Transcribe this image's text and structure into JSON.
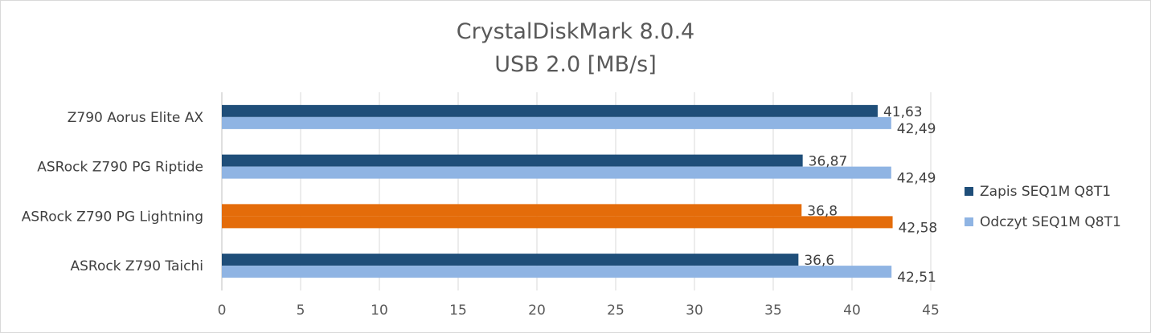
{
  "chart_data": {
    "type": "bar",
    "orientation": "horizontal",
    "title": "CrystalDiskMark 8.0.4",
    "subtitle": "USB 2.0 [MB/s]",
    "categories": [
      "Z790 Aorus Elite AX",
      "ASRock Z790 PG Riptide",
      "ASRock Z790 PG Lightning",
      "ASRock Z790 Taichi"
    ],
    "series": [
      {
        "name": "Zapis SEQ1M Q8T1",
        "values": [
          41.63,
          36.87,
          36.8,
          36.6
        ],
        "labels": [
          "41,63",
          "36,87",
          "36,8",
          "36,6"
        ],
        "color": "#1f4e79"
      },
      {
        "name": "Odczyt SEQ1M Q8T1",
        "values": [
          42.49,
          42.49,
          42.58,
          42.51
        ],
        "labels": [
          "42,49",
          "42,49",
          "42,58",
          "42,51"
        ],
        "color": "#8fb4e3"
      }
    ],
    "highlight": {
      "category_index": 2,
      "color": "#e46c0a"
    },
    "xlim": [
      0,
      45
    ],
    "xticks": [
      0,
      5,
      10,
      15,
      20,
      25,
      30,
      35,
      40,
      45
    ],
    "grid": true,
    "legend_position": "right"
  }
}
